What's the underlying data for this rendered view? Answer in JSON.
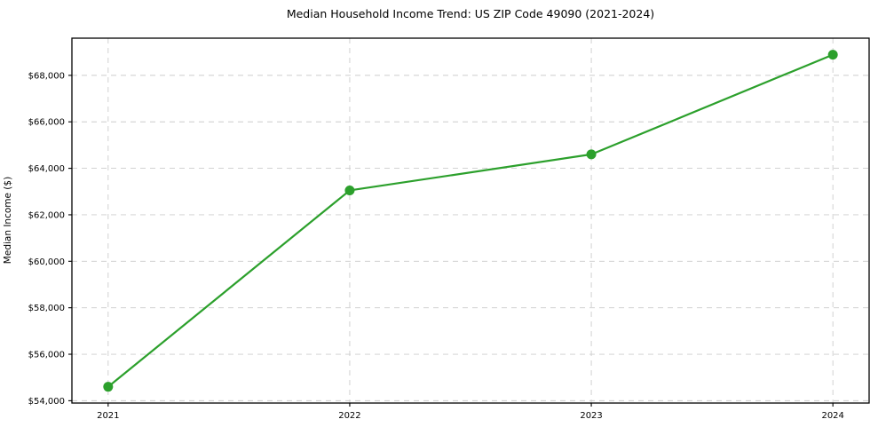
{
  "chart_data": {
    "type": "line",
    "title": "Median Household Income Trend: US ZIP Code 49090 (2021-2024)",
    "xlabel": "",
    "ylabel": "Median Income ($)",
    "x": [
      2021,
      2022,
      2023,
      2024
    ],
    "series": [
      {
        "name": "Median household income",
        "values": [
          54600,
          63050,
          64600,
          68890
        ]
      }
    ],
    "xticks": [
      2021,
      2022,
      2023,
      2024
    ],
    "xtick_labels": [
      "2021",
      "2022",
      "2023",
      "2024"
    ],
    "yticks": [
      54000,
      56000,
      58000,
      60000,
      62000,
      64000,
      66000,
      68000
    ],
    "ytick_labels": [
      "$54,000",
      "$56,000",
      "$58,000",
      "$60,000",
      "$62,000",
      "$64,000",
      "$66,000",
      "$68,000"
    ],
    "xlim": [
      2020.85,
      2024.15
    ],
    "ylim": [
      53900,
      69600
    ],
    "grid": "on",
    "grid_line_style": "dashed",
    "legend_position": "none",
    "colors": {
      "line": "#2ca02c",
      "marker": "#2ca02c",
      "grid": "#cccccc",
      "spine": "#000000",
      "text": "#000000",
      "background": "#ffffff"
    }
  }
}
